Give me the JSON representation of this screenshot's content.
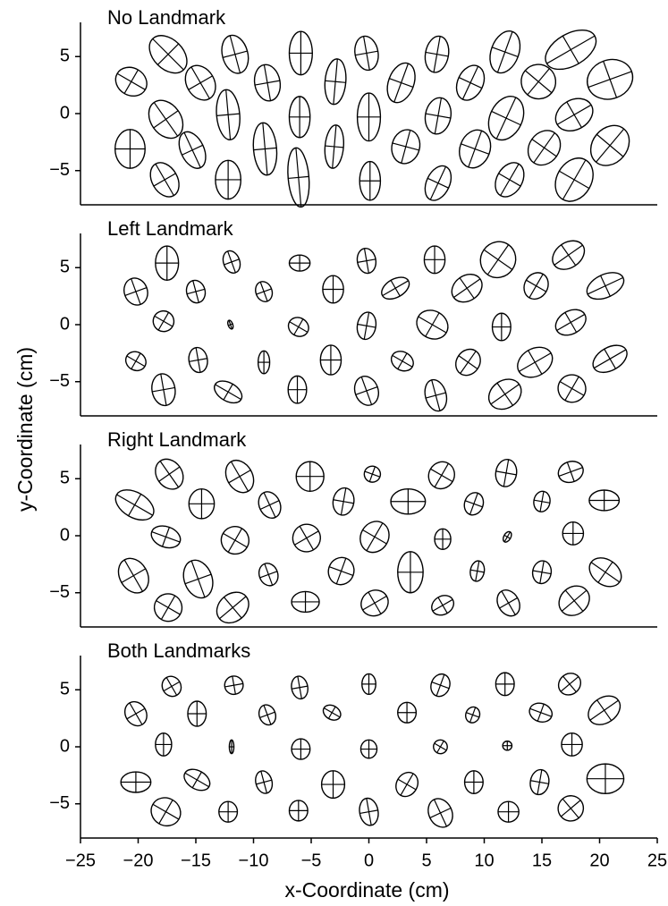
{
  "ylabel": "y-Coordinate (cm)",
  "chart_data": [
    {
      "type": "ellipse",
      "title": "No Landmark",
      "xlim": [
        -25,
        25
      ],
      "ylim": [
        -8,
        8
      ],
      "yticks": [
        5,
        0,
        {
          "value": -5,
          "label": "−5"
        }
      ],
      "ellipses": {
        "x": [
          -20.6,
          -17.4,
          -14.6,
          -11.6,
          -8.8,
          -5.9,
          -2.9,
          -0.2,
          2.8,
          5.9,
          8.8,
          11.8,
          17.5,
          14.7,
          20.9,
          -17.6,
          -12.2,
          -6.0,
          0,
          6.0,
          11.9,
          17.8,
          -20.7,
          -15.3,
          -9.0,
          -3.0,
          3.2,
          9.2,
          15.2,
          20.9,
          -17.7,
          -12.2,
          -6.1,
          0.1,
          6.0,
          12.2,
          17.8
        ],
        "y": [
          2.8,
          5.2,
          2.7,
          5.2,
          2.7,
          5.3,
          2.8,
          5.3,
          2.7,
          5.2,
          2.7,
          5.4,
          5.6,
          2.8,
          3.0,
          -0.5,
          -0.1,
          -0.3,
          -0.3,
          -0.2,
          -0.4,
          -0.1,
          -3.1,
          -3.2,
          -3.1,
          -2.9,
          -2.9,
          -3.1,
          -3.0,
          -2.8,
          -5.8,
          -5.8,
          -5.6,
          -5.9,
          -6.1,
          -5.8,
          -5.8
        ],
        "rx": [
          1.4,
          1.9,
          1.2,
          1.1,
          1.1,
          1.0,
          0.9,
          1.0,
          1.1,
          1.0,
          1.1,
          1.2,
          2.4,
          1.5,
          2.0,
          1.3,
          1.0,
          0.9,
          1.0,
          1.1,
          1.4,
          1.7,
          1.3,
          1.0,
          1.0,
          0.8,
          1.2,
          1.3,
          1.3,
          1.5,
          1.1,
          1.1,
          0.9,
          0.9,
          1.0,
          1.1,
          1.5
        ],
        "ry": [
          1.2,
          1.3,
          1.6,
          1.7,
          1.6,
          1.9,
          2.0,
          1.5,
          1.8,
          1.6,
          1.6,
          1.9,
          1.4,
          1.5,
          1.7,
          1.8,
          2.2,
          1.8,
          2.1,
          1.6,
          2.0,
          1.3,
          1.7,
          1.7,
          2.3,
          1.9,
          1.5,
          1.7,
          1.6,
          1.9,
          1.6,
          1.7,
          2.6,
          1.7,
          1.6,
          1.6,
          2.0
        ],
        "angle": [
          30,
          45,
          -30,
          -15,
          -10,
          0,
          5,
          -10,
          20,
          10,
          25,
          20,
          -30,
          40,
          -20,
          -35,
          -5,
          0,
          0,
          10,
          25,
          -30,
          0,
          -25,
          -5,
          5,
          15,
          20,
          35,
          40,
          -30,
          0,
          -5,
          0,
          25,
          30,
          30
        ]
      }
    },
    {
      "type": "ellipse",
      "title": "Left Landmark",
      "xlim": [
        -25,
        25
      ],
      "ylim": [
        -8,
        8
      ],
      "yticks": [
        5,
        0,
        {
          "value": -5,
          "label": "−5"
        }
      ],
      "ellipses": {
        "x": [
          -20.2,
          -17.5,
          -15.0,
          -11.9,
          -9.1,
          -6.0,
          -3.1,
          -0.2,
          2.3,
          5.7,
          8.5,
          11.2,
          14.5,
          17.3,
          20.5,
          -17.8,
          -12.0,
          -6.1,
          -0.2,
          5.5,
          11.5,
          17.5,
          -20.2,
          -14.8,
          -9.1,
          -3.3,
          2.9,
          8.6,
          14.4,
          20.9,
          -17.8,
          -12.2,
          -6.2,
          -0.2,
          5.8,
          11.8,
          17.6
        ],
        "y": [
          2.9,
          5.4,
          2.9,
          5.5,
          2.9,
          5.4,
          3.1,
          5.6,
          3.2,
          5.7,
          3.2,
          5.7,
          3.4,
          6.1,
          3.4,
          0.3,
          0,
          -0.2,
          -0.1,
          0,
          -0.2,
          0.2,
          -3.2,
          -3.1,
          -3.3,
          -3.1,
          -3.2,
          -3.3,
          -3.3,
          -3.0,
          -5.7,
          -5.9,
          -5.7,
          -5.8,
          -6.2,
          -6.1,
          -5.6
        ],
        "rx": [
          1.0,
          1.0,
          0.8,
          0.7,
          0.7,
          0.9,
          0.9,
          0.8,
          1.3,
          0.9,
          1.4,
          1.5,
          1.0,
          1.5,
          1.7,
          0.9,
          0.2,
          0.9,
          0.8,
          1.4,
          0.8,
          1.4,
          0.9,
          0.8,
          0.5,
          0.9,
          1.0,
          1.0,
          1.6,
          1.6,
          1.0,
          1.3,
          0.8,
          1.0,
          0.9,
          1.5,
          1.2
        ],
        "ry": [
          1.2,
          1.5,
          1.0,
          1.0,
          0.9,
          0.7,
          1.2,
          1.1,
          0.8,
          1.2,
          1.1,
          1.6,
          1.2,
          1.1,
          1.0,
          0.9,
          0.4,
          0.8,
          1.2,
          1.2,
          1.2,
          1.0,
          0.8,
          1.1,
          1.0,
          1.3,
          0.8,
          1.2,
          1.2,
          1.0,
          1.4,
          0.8,
          1.2,
          1.3,
          1.4,
          1.2,
          1.2
        ],
        "angle": [
          -20,
          0,
          -15,
          -20,
          -20,
          0,
          0,
          -10,
          -30,
          0,
          -35,
          35,
          30,
          -35,
          -25,
          30,
          -20,
          30,
          10,
          30,
          0,
          -30,
          30,
          -10,
          0,
          0,
          30,
          35,
          -30,
          -30,
          -10,
          30,
          0,
          -20,
          -15,
          -35,
          30
        ]
      }
    },
    {
      "type": "ellipse",
      "title": "Right Landmark",
      "xlim": [
        -25,
        25
      ],
      "ylim": [
        -8,
        8
      ],
      "yticks": [
        5,
        0,
        {
          "value": -5,
          "label": "−5"
        }
      ],
      "ellipses": {
        "x": [
          -20.3,
          -17.3,
          -14.5,
          -11.2,
          -8.6,
          -5.1,
          -2.2,
          0.3,
          3.4,
          6.3,
          9.1,
          11.9,
          15.0,
          17.5,
          20.4,
          -17.6,
          -11.6,
          -5.4,
          0.5,
          6.4,
          12.0,
          17.7,
          -20.4,
          -14.8,
          -8.7,
          -2.4,
          3.6,
          9.4,
          15.0,
          20.5,
          -17.4,
          -11.8,
          -5.5,
          0.5,
          6.4,
          12.1,
          17.8
        ],
        "y": [
          2.7,
          5.4,
          2.8,
          5.2,
          2.7,
          5.2,
          3.0,
          5.4,
          3.0,
          5.3,
          2.8,
          5.5,
          3.0,
          5.6,
          3.1,
          -0.1,
          -0.4,
          -0.2,
          -0.1,
          -0.3,
          -0.1,
          0.2,
          -3.5,
          -3.8,
          -3.4,
          -3.1,
          -3.2,
          -3.1,
          -3.2,
          -3.2,
          -6.3,
          -6.3,
          -5.8,
          -5.9,
          -6.1,
          -5.9,
          -5.7
        ],
        "rx": [
          1.8,
          1.1,
          1.1,
          1.1,
          0.9,
          1.2,
          0.9,
          0.7,
          1.5,
          1.1,
          0.8,
          0.9,
          0.7,
          1.1,
          1.3,
          1.3,
          1.2,
          1.2,
          1.2,
          0.7,
          0.3,
          0.9,
          1.2,
          1.2,
          0.8,
          1.1,
          1.1,
          0.6,
          0.8,
          1.5,
          1.2,
          1.5,
          1.2,
          1.2,
          1.0,
          0.9,
          1.4
        ],
        "ry": [
          1.1,
          1.4,
          1.3,
          1.5,
          1.2,
          1.3,
          1.2,
          0.7,
          1.1,
          1.2,
          1.0,
          1.2,
          0.9,
          0.9,
          0.9,
          0.9,
          1.2,
          1.2,
          1.4,
          0.9,
          0.5,
          1.0,
          1.6,
          1.7,
          1.0,
          1.2,
          1.8,
          0.9,
          1.0,
          1.1,
          1.2,
          1.2,
          0.9,
          1.1,
          0.8,
          1.2,
          1.2
        ],
        "angle": [
          30,
          -35,
          0,
          -30,
          -25,
          0,
          10,
          20,
          0,
          30,
          20,
          10,
          10,
          -20,
          0,
          20,
          30,
          -30,
          30,
          0,
          30,
          0,
          -30,
          -20,
          -20,
          20,
          0,
          10,
          10,
          35,
          30,
          -40,
          0,
          -30,
          -30,
          -30,
          -40
        ]
      }
    },
    {
      "type": "ellipse",
      "title": "Both Landmarks",
      "xlim": [
        -25,
        25
      ],
      "ylim": [
        -8,
        8
      ],
      "yticks": [
        5,
        0,
        {
          "value": -5,
          "label": "−5"
        }
      ],
      "xticks": [
        {
          "value": -25,
          "label": "−25"
        },
        {
          "value": -20,
          "label": "−20"
        },
        {
          "value": -15,
          "label": "−15"
        },
        {
          "value": -10,
          "label": "−10"
        },
        {
          "value": -5,
          "label": "−5"
        },
        0,
        5,
        10,
        15,
        20,
        25
      ],
      "xlabel": "x-Coordinate (cm)",
      "ellipses": {
        "x": [
          -20.2,
          -17.1,
          -14.9,
          -11.7,
          -8.8,
          -6.0,
          -3.2,
          0,
          3.3,
          6.2,
          9.0,
          11.8,
          14.9,
          17.4,
          20.4,
          -17.8,
          -11.9,
          -5.9,
          0,
          6.2,
          12.0,
          17.6,
          -20.2,
          -14.9,
          -9.1,
          -3.1,
          3.3,
          9.1,
          14.8,
          20.5,
          -17.6,
          -12.2,
          -6.1,
          0,
          6.2,
          12.1,
          17.5
        ],
        "y": [
          2.9,
          5.3,
          2.9,
          5.4,
          2.8,
          5.2,
          3.0,
          5.5,
          3.0,
          5.4,
          2.8,
          5.5,
          3.0,
          5.5,
          3.2,
          0.2,
          0,
          -0.2,
          -0.2,
          0,
          0.1,
          0.2,
          -3.1,
          -2.9,
          -3.1,
          -3.3,
          -3.3,
          -3.1,
          -3.1,
          -2.8,
          -5.7,
          -5.7,
          -5.6,
          -5.7,
          -5.8,
          -5.7,
          -5.4
        ],
        "rx": [
          0.9,
          0.8,
          0.8,
          0.8,
          0.7,
          0.7,
          0.8,
          0.6,
          0.8,
          0.8,
          0.6,
          0.8,
          1.0,
          1.0,
          1.5,
          0.7,
          0.2,
          0.8,
          0.7,
          0.6,
          0.4,
          0.9,
          1.3,
          1.2,
          0.7,
          1.0,
          0.9,
          0.8,
          0.8,
          1.6,
          1.3,
          0.8,
          0.8,
          0.8,
          1.0,
          0.9,
          1.1
        ],
        "ry": [
          1.1,
          0.9,
          1.1,
          0.8,
          0.9,
          1.0,
          0.6,
          0.9,
          0.9,
          1.0,
          0.7,
          1.0,
          0.8,
          0.9,
          1.1,
          1.0,
          0.6,
          0.9,
          0.8,
          0.6,
          0.4,
          1.0,
          0.9,
          0.8,
          1.0,
          1.2,
          1.1,
          1.0,
          1.1,
          1.3,
          1.2,
          0.9,
          0.9,
          1.2,
          1.3,
          0.9,
          1.1
        ],
        "angle": [
          -30,
          -30,
          0,
          -10,
          -20,
          -10,
          30,
          0,
          0,
          20,
          20,
          0,
          20,
          -40,
          -35,
          0,
          0,
          0,
          0,
          30,
          0,
          0,
          0,
          30,
          -15,
          0,
          30,
          0,
          10,
          0,
          30,
          0,
          0,
          -10,
          -25,
          0,
          -40
        ]
      }
    }
  ]
}
